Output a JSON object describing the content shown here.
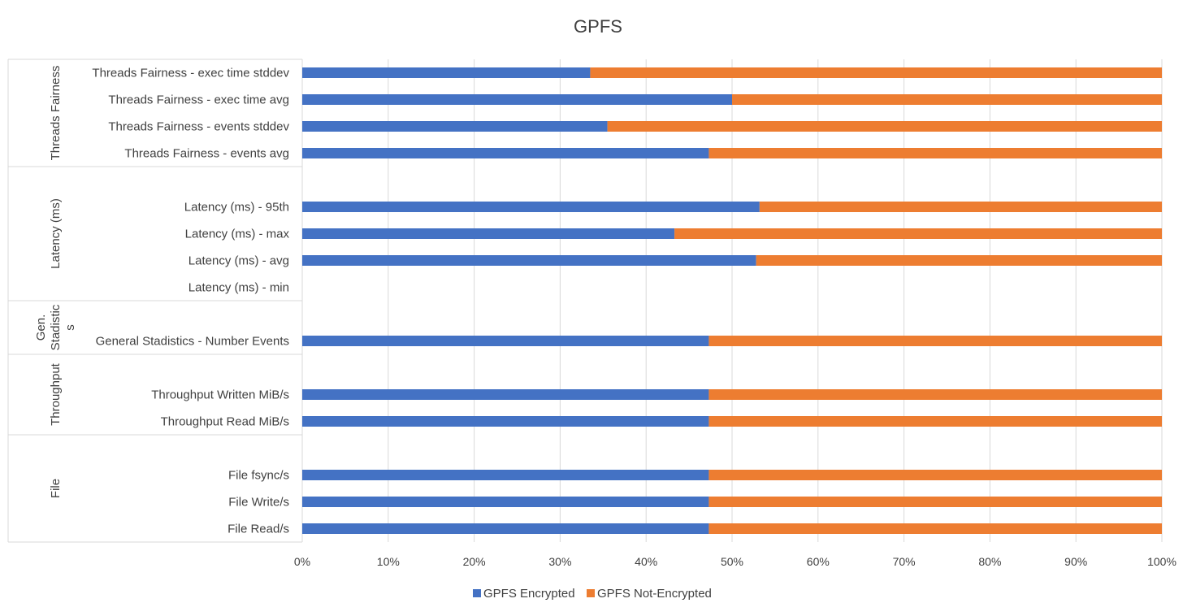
{
  "chart_data": {
    "type": "bar",
    "orientation": "horizontal",
    "stacking": "percent",
    "title": "GPFS",
    "xlabel": "",
    "ylabel": "",
    "xlim": [
      0,
      100
    ],
    "x_ticks": [
      "0%",
      "10%",
      "20%",
      "30%",
      "40%",
      "50%",
      "60%",
      "70%",
      "80%",
      "90%",
      "100%"
    ],
    "grid": true,
    "legend_position": "bottom",
    "colors": {
      "encrypted": "#4472C4",
      "not_encrypted": "#ED7D31"
    },
    "groups": [
      {
        "label_lines": [
          "Threads Fairness"
        ],
        "categories": [
          "Threads Fairness - exec time stddev",
          "Threads Fairness - exec time avg",
          "Threads Fairness - events stddev",
          "Threads Fairness - events avg"
        ]
      },
      {
        "label_lines": [
          "Latency (ms)"
        ],
        "categories": [
          "",
          "Latency (ms) - 95th",
          "Latency (ms) - max",
          "Latency (ms) - avg",
          "Latency (ms) - min"
        ]
      },
      {
        "label_lines": [
          "Gen.",
          "Stadistic",
          "s"
        ],
        "categories": [
          "",
          "General Stadistics - Number Events"
        ]
      },
      {
        "label_lines": [
          "Throughput"
        ],
        "categories": [
          "",
          "Throughput Written MiB/s",
          "Throughput Read MiB/s"
        ]
      },
      {
        "label_lines": [
          "File"
        ],
        "categories": [
          "",
          "File fsync/s",
          "File Write/s",
          "File Read/s"
        ]
      }
    ],
    "series": [
      {
        "name": "GPFS Encrypted",
        "values": [
          33.5,
          50,
          35.5,
          47.3,
          null,
          53.2,
          43.3,
          52.8,
          null,
          null,
          47.3,
          null,
          47.3,
          47.3,
          null,
          47.3,
          47.3,
          47.3
        ]
      },
      {
        "name": "GPFS Not-Encrypted",
        "values": [
          66.5,
          50,
          64.5,
          52.7,
          null,
          46.8,
          56.7,
          47.2,
          null,
          null,
          52.7,
          null,
          52.7,
          52.7,
          null,
          52.7,
          52.7,
          52.7
        ]
      }
    ]
  }
}
